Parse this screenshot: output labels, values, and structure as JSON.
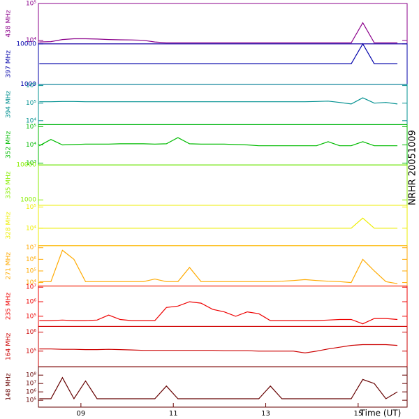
{
  "side_label": "NRHR 20051009",
  "chart_data": [
    {
      "type": "line",
      "ylabel": "438 MHz",
      "color": "#8b008b",
      "log": true,
      "xlim": [
        8.08,
        16.06
      ],
      "ylim": [
        8000,
        100000
      ],
      "yticks": [
        {
          "value": 10000,
          "label": "10⁴"
        },
        {
          "value": 100000,
          "label": "10⁵"
        }
      ],
      "x": [
        8.1,
        8.35,
        8.6,
        8.85,
        9.1,
        9.35,
        9.6,
        9.85,
        10.1,
        10.35,
        10.6,
        10.85,
        11.1,
        11.35,
        11.6,
        11.85,
        12.1,
        12.35,
        12.6,
        12.85,
        13.1,
        13.35,
        13.6,
        13.85,
        14.1,
        14.35,
        14.6,
        14.85,
        15.1,
        15.35,
        15.6,
        15.85
      ],
      "values": [
        9000,
        9200,
        10500,
        11000,
        11000,
        10800,
        10500,
        10300,
        10200,
        10000,
        9000,
        8500,
        8500,
        8500,
        8500,
        8500,
        8500,
        8500,
        8500,
        8500,
        8500,
        8500,
        8500,
        8500,
        8500,
        8500,
        8500,
        8500,
        30000,
        8500,
        8500,
        8500
      ]
    },
    {
      "type": "line",
      "ylabel": "397 MHz",
      "color": "#0000aa",
      "log": true,
      "xlim": [
        8.08,
        16.06
      ],
      "ylim": [
        1000,
        10000
      ],
      "yticks": [
        1000,
        10000
      ],
      "x": [
        8.1,
        8.35,
        8.6,
        8.85,
        9.1,
        9.35,
        9.6,
        9.85,
        10.1,
        10.35,
        10.6,
        10.85,
        11.1,
        11.35,
        11.6,
        11.85,
        12.1,
        12.35,
        12.6,
        12.85,
        13.1,
        13.35,
        13.6,
        13.85,
        14.1,
        14.35,
        14.6,
        14.85,
        15.1,
        15.35,
        15.6,
        15.85
      ],
      "values": [
        3200,
        3200,
        3200,
        3200,
        3200,
        3200,
        3200,
        3200,
        3200,
        3200,
        3200,
        3200,
        3200,
        3200,
        3200,
        3200,
        3200,
        3200,
        3200,
        3200,
        3200,
        3200,
        3200,
        3200,
        3200,
        3200,
        3200,
        3200,
        10000,
        3200,
        3200,
        3200
      ]
    },
    {
      "type": "line",
      "ylabel": "394 MHz",
      "color": "#009090",
      "log": true,
      "xlim": [
        8.08,
        16.06
      ],
      "ylim": [
        6000,
        1200000
      ],
      "yticks": [
        {
          "value": 10000,
          "label": "10⁴"
        },
        {
          "value": 100000,
          "label": "10⁵"
        },
        {
          "value": 1000000,
          "label": "10⁶"
        }
      ],
      "x": [
        8.1,
        8.35,
        8.6,
        8.85,
        9.1,
        9.35,
        9.6,
        9.85,
        10.1,
        10.35,
        10.6,
        10.85,
        11.1,
        11.35,
        11.6,
        11.85,
        12.1,
        12.35,
        12.6,
        12.85,
        13.1,
        13.35,
        13.6,
        13.85,
        14.1,
        14.35,
        14.6,
        14.85,
        15.1,
        15.35,
        15.6,
        15.85
      ],
      "values": [
        120000,
        120000,
        125000,
        125000,
        120000,
        120000,
        120000,
        120000,
        120000,
        120000,
        120000,
        120000,
        120000,
        120000,
        120000,
        120000,
        120000,
        120000,
        120000,
        120000,
        120000,
        120000,
        120000,
        120000,
        125000,
        130000,
        110000,
        90000,
        200000,
        100000,
        110000,
        90000
      ]
    },
    {
      "type": "line",
      "ylabel": "352 MHz",
      "color": "#00bb00",
      "log": true,
      "xlim": [
        8.08,
        16.06
      ],
      "ylim": [
        800,
        130000
      ],
      "yticks": [
        {
          "value": 1000,
          "label": "10³"
        },
        {
          "value": 10000,
          "label": "10⁴"
        },
        {
          "value": 100000,
          "label": "10⁵"
        }
      ],
      "x": [
        8.1,
        8.35,
        8.6,
        8.85,
        9.1,
        9.35,
        9.6,
        9.85,
        10.1,
        10.35,
        10.6,
        10.85,
        11.1,
        11.35,
        11.6,
        11.85,
        12.1,
        12.35,
        12.6,
        12.85,
        13.1,
        13.35,
        13.6,
        13.85,
        14.1,
        14.35,
        14.6,
        14.85,
        15.1,
        15.35,
        15.6,
        15.85
      ],
      "values": [
        9000,
        20000,
        10000,
        10500,
        11000,
        11000,
        11000,
        11500,
        11500,
        11500,
        11000,
        11500,
        25000,
        11500,
        11000,
        11000,
        11000,
        10500,
        10000,
        9000,
        9000,
        9000,
        9000,
        9000,
        9000,
        15000,
        9000,
        9000,
        15000,
        9000,
        9000,
        9000
      ]
    },
    {
      "type": "line",
      "ylabel": "335 MHz",
      "color": "#88ee00",
      "log": true,
      "xlim": [
        8.08,
        16.06
      ],
      "ylim": [
        700,
        10000
      ],
      "yticks": [
        1000,
        10000
      ],
      "x": [
        8.1,
        15.85
      ],
      "values": [
        null,
        null
      ]
    },
    {
      "type": "line",
      "ylabel": "328 MHz",
      "color": "#eeee00",
      "log": true,
      "xlim": [
        8.08,
        16.06
      ],
      "ylim": [
        1500,
        120000
      ],
      "yticks": [
        {
          "value": 10000,
          "label": "10⁴"
        },
        {
          "value": 100000,
          "label": "10⁵"
        }
      ],
      "x": [
        8.1,
        8.35,
        8.6,
        8.85,
        9.1,
        9.35,
        9.6,
        9.85,
        10.1,
        10.35,
        10.6,
        10.85,
        11.1,
        11.35,
        11.6,
        11.85,
        12.1,
        12.35,
        12.6,
        12.85,
        13.1,
        13.35,
        13.6,
        13.85,
        14.1,
        14.35,
        14.6,
        14.85,
        15.1,
        15.35,
        15.6,
        15.85
      ],
      "values": [
        10000,
        10000,
        10000,
        10000,
        10000,
        10000,
        10000,
        10000,
        10000,
        10000,
        10000,
        10000,
        10000,
        10000,
        10000,
        10000,
        10000,
        10000,
        10000,
        10000,
        10000,
        10000,
        10000,
        10000,
        10000,
        10000,
        10000,
        10000,
        30000,
        10000,
        10000,
        10000
      ]
    },
    {
      "type": "line",
      "ylabel": "271 MHz",
      "color": "#ffaa00",
      "log": true,
      "xlim": [
        8.08,
        16.06
      ],
      "ylim": [
        5000,
        15000000
      ],
      "yticks": [
        {
          "value": 10000,
          "label": "10⁴"
        },
        {
          "value": 100000,
          "label": "10⁵"
        },
        {
          "value": 1000000,
          "label": "10⁶"
        },
        {
          "value": 10000000,
          "label": "10⁷"
        }
      ],
      "x": [
        8.1,
        8.35,
        8.6,
        8.85,
        9.1,
        9.35,
        9.6,
        9.85,
        10.1,
        10.35,
        10.6,
        10.85,
        11.1,
        11.35,
        11.6,
        11.85,
        12.1,
        12.35,
        12.6,
        12.85,
        13.1,
        13.35,
        13.6,
        13.85,
        14.1,
        14.35,
        14.6,
        14.85,
        15.1,
        15.35,
        15.6,
        15.85
      ],
      "values": [
        12000,
        12000,
        6000000,
        1000000,
        12000,
        12000,
        12000,
        12000,
        12000,
        12000,
        20000,
        12000,
        12000,
        200000,
        12000,
        12000,
        12000,
        12000,
        12000,
        12000,
        12000,
        13000,
        15000,
        18000,
        15000,
        13000,
        12000,
        10000,
        1000000,
        100000,
        12000,
        8000
      ]
    },
    {
      "type": "line",
      "ylabel": "235 MHz",
      "color": "#ee0000",
      "log": true,
      "xlim": [
        8.08,
        16.06
      ],
      "ylim": [
        20000,
        12000000
      ],
      "yticks": [
        {
          "value": 100000,
          "label": "10⁵"
        },
        {
          "value": 1000000,
          "label": "10⁶"
        },
        {
          "value": 10000000,
          "label": "10⁷"
        }
      ],
      "x": [
        8.1,
        8.35,
        8.6,
        8.85,
        9.1,
        9.35,
        9.6,
        9.85,
        10.1,
        10.35,
        10.6,
        10.85,
        11.1,
        11.35,
        11.6,
        11.85,
        12.1,
        12.35,
        12.6,
        12.85,
        13.1,
        13.35,
        13.6,
        13.85,
        14.1,
        14.35,
        14.6,
        14.85,
        15.1,
        15.35,
        15.6,
        15.85
      ],
      "values": [
        50000,
        50000,
        55000,
        50000,
        50000,
        55000,
        120000,
        60000,
        50000,
        50000,
        50000,
        400000,
        500000,
        1000000,
        800000,
        300000,
        200000,
        100000,
        200000,
        150000,
        50000,
        50000,
        50000,
        50000,
        50000,
        55000,
        60000,
        60000,
        30000,
        70000,
        70000,
        60000
      ]
    },
    {
      "type": "line",
      "ylabel": "164 MHz",
      "color": "#cc0000",
      "log": true,
      "xlim": [
        8.08,
        16.06
      ],
      "ylim": [
        15000,
        2000000
      ],
      "yticks": [
        {
          "value": 100000,
          "label": "10⁵"
        },
        {
          "value": 1000000,
          "label": "10⁶"
        }
      ],
      "x": [
        8.1,
        8.35,
        8.6,
        8.85,
        9.1,
        9.35,
        9.6,
        9.85,
        10.1,
        10.35,
        10.6,
        10.85,
        11.1,
        11.35,
        11.6,
        11.85,
        12.1,
        12.35,
        12.6,
        12.85,
        13.1,
        13.35,
        13.6,
        13.85,
        14.1,
        14.35,
        14.6,
        14.85,
        15.1,
        15.35,
        15.6,
        15.85
      ],
      "values": [
        130000,
        130000,
        125000,
        125000,
        120000,
        120000,
        125000,
        120000,
        115000,
        110000,
        110000,
        110000,
        110000,
        110000,
        110000,
        110000,
        105000,
        105000,
        105000,
        100000,
        100000,
        100000,
        100000,
        80000,
        100000,
        130000,
        160000,
        200000,
        220000,
        220000,
        220000,
        200000
      ]
    },
    {
      "type": "line",
      "ylabel": "148 MHz",
      "color": "#660000",
      "log": true,
      "xlim": [
        8.08,
        16.06
      ],
      "ylim": [
        15000,
        1000000000
      ],
      "yticks": [
        {
          "value": 100000,
          "label": "10⁵"
        },
        {
          "value": 1000000,
          "label": "10⁶"
        },
        {
          "value": 10000000,
          "label": "10⁷"
        },
        {
          "value": 100000000,
          "label": "10⁸"
        }
      ],
      "x": [
        8.1,
        8.35,
        8.6,
        8.85,
        9.1,
        9.35,
        9.6,
        9.85,
        10.1,
        10.35,
        10.6,
        10.85,
        11.1,
        11.35,
        11.6,
        11.85,
        12.1,
        12.35,
        12.6,
        12.85,
        13.1,
        13.35,
        13.6,
        13.85,
        14.1,
        14.35,
        14.6,
        14.85,
        15.1,
        15.35,
        15.6,
        15.85
      ],
      "values": [
        150000,
        150000,
        50000000,
        150000,
        20000000,
        150000,
        150000,
        150000,
        150000,
        150000,
        150000,
        5000000,
        150000,
        150000,
        150000,
        150000,
        150000,
        150000,
        150000,
        150000,
        5000000,
        150000,
        150000,
        150000,
        150000,
        150000,
        150000,
        150000,
        30000000,
        10000000,
        150000,
        1000000
      ],
      "xlabel": "Time (UT)",
      "xticks": [
        {
          "value": 9,
          "label": "09"
        },
        {
          "value": 11,
          "label": "11"
        },
        {
          "value": 13,
          "label": "13"
        },
        {
          "value": 15,
          "label": "15"
        }
      ]
    }
  ]
}
